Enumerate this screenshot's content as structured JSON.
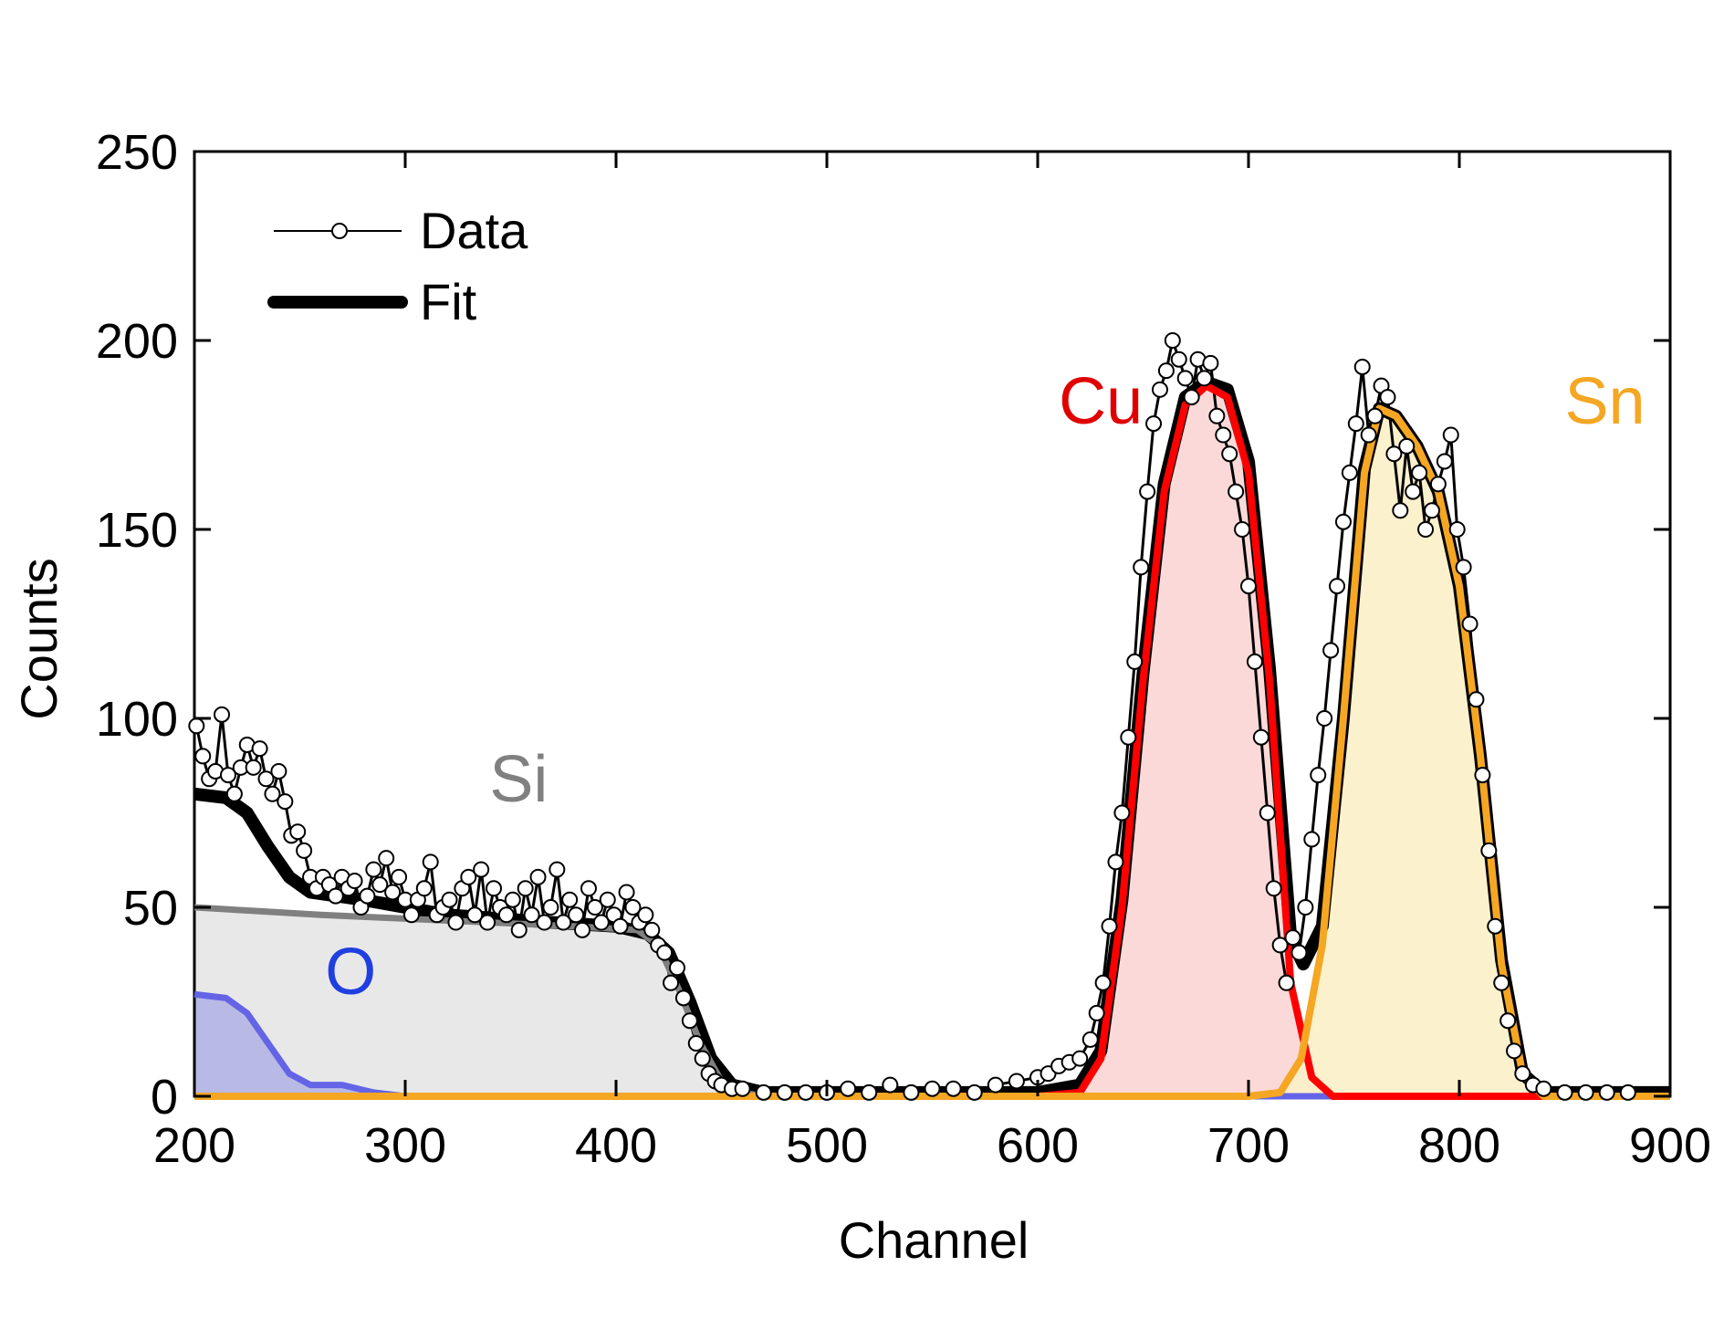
{
  "chart_data": {
    "type": "line",
    "title": "",
    "xlabel": "Channel",
    "ylabel": "Counts",
    "xlim": [
      200,
      900
    ],
    "ylim": [
      0,
      250
    ],
    "xticks": [
      200,
      300,
      400,
      500,
      600,
      700,
      800,
      900
    ],
    "yticks": [
      0,
      50,
      100,
      150,
      200,
      250
    ],
    "legend": {
      "position": "top-left",
      "entries": [
        {
          "label": "Data",
          "style": "line-with-open-circle"
        },
        {
          "label": "Fit",
          "style": "thick-line"
        }
      ]
    },
    "annotations": [
      {
        "text": "Si",
        "x": 340,
        "y": 78,
        "color": "#808080"
      },
      {
        "text": "O",
        "x": 262,
        "y": 27,
        "color": "#1f3fe0"
      },
      {
        "text": "Cu",
        "x": 610,
        "y": 178,
        "color": "#e00000"
      },
      {
        "text": "Sn",
        "x": 850,
        "y": 178,
        "color": "#f5a623"
      }
    ],
    "series": [
      {
        "name": "Si",
        "color": "#808080",
        "fill": "#e6e6e6",
        "points": [
          [
            200,
            50
          ],
          [
            230,
            49
          ],
          [
            260,
            48
          ],
          [
            300,
            47
          ],
          [
            340,
            46
          ],
          [
            380,
            45
          ],
          [
            410,
            44
          ],
          [
            420,
            40
          ],
          [
            430,
            28
          ],
          [
            440,
            14
          ],
          [
            450,
            4
          ],
          [
            460,
            1
          ],
          [
            470,
            0
          ],
          [
            900,
            0
          ]
        ]
      },
      {
        "name": "O",
        "color": "#6464e6",
        "fill": "#b4b4e6",
        "points": [
          [
            200,
            27
          ],
          [
            215,
            26
          ],
          [
            225,
            22
          ],
          [
            235,
            14
          ],
          [
            245,
            6
          ],
          [
            255,
            3
          ],
          [
            270,
            3
          ],
          [
            285,
            1
          ],
          [
            300,
            0
          ],
          [
            900,
            0
          ]
        ]
      },
      {
        "name": "Cu",
        "color": "#ff0000",
        "fill": "#fcd5d5",
        "points": [
          [
            200,
            0
          ],
          [
            600,
            0
          ],
          [
            620,
            1
          ],
          [
            630,
            10
          ],
          [
            640,
            50
          ],
          [
            650,
            110
          ],
          [
            660,
            160
          ],
          [
            670,
            183
          ],
          [
            680,
            188
          ],
          [
            690,
            185
          ],
          [
            700,
            165
          ],
          [
            710,
            110
          ],
          [
            720,
            30
          ],
          [
            730,
            5
          ],
          [
            740,
            0
          ],
          [
            900,
            0
          ]
        ]
      },
      {
        "name": "Sn",
        "color": "#f5a623",
        "fill": "#fcefc8",
        "points": [
          [
            200,
            0
          ],
          [
            700,
            0
          ],
          [
            715,
            1
          ],
          [
            725,
            10
          ],
          [
            735,
            40
          ],
          [
            745,
            100
          ],
          [
            755,
            165
          ],
          [
            762,
            182
          ],
          [
            770,
            180
          ],
          [
            780,
            172
          ],
          [
            790,
            160
          ],
          [
            800,
            135
          ],
          [
            810,
            90
          ],
          [
            820,
            35
          ],
          [
            830,
            6
          ],
          [
            840,
            0
          ],
          [
            900,
            0
          ]
        ]
      },
      {
        "name": "Fit",
        "color": "#000000",
        "points": [
          [
            200,
            80
          ],
          [
            215,
            79
          ],
          [
            225,
            75
          ],
          [
            235,
            66
          ],
          [
            245,
            58
          ],
          [
            255,
            54
          ],
          [
            280,
            52
          ],
          [
            320,
            48
          ],
          [
            370,
            46
          ],
          [
            400,
            45
          ],
          [
            415,
            43
          ],
          [
            425,
            38
          ],
          [
            435,
            25
          ],
          [
            445,
            10
          ],
          [
            455,
            3
          ],
          [
            470,
            1
          ],
          [
            500,
            1
          ],
          [
            560,
            1
          ],
          [
            600,
            1
          ],
          [
            620,
            3
          ],
          [
            630,
            12
          ],
          [
            640,
            52
          ],
          [
            650,
            112
          ],
          [
            660,
            162
          ],
          [
            670,
            185
          ],
          [
            680,
            189
          ],
          [
            690,
            187
          ],
          [
            700,
            168
          ],
          [
            710,
            113
          ],
          [
            720,
            42
          ],
          [
            726,
            35
          ],
          [
            735,
            45
          ],
          [
            745,
            100
          ],
          [
            755,
            166
          ],
          [
            762,
            182
          ],
          [
            770,
            180
          ],
          [
            780,
            172
          ],
          [
            790,
            160
          ],
          [
            800,
            135
          ],
          [
            810,
            90
          ],
          [
            820,
            36
          ],
          [
            830,
            6
          ],
          [
            840,
            1
          ],
          [
            900,
            1
          ]
        ]
      },
      {
        "name": "Data",
        "color": "#000000",
        "marker": "open-circle",
        "points": [
          [
            201,
            98
          ],
          [
            204,
            90
          ],
          [
            207,
            84
          ],
          [
            210,
            86
          ],
          [
            213,
            101
          ],
          [
            216,
            85
          ],
          [
            219,
            80
          ],
          [
            222,
            87
          ],
          [
            225,
            93
          ],
          [
            228,
            87
          ],
          [
            231,
            92
          ],
          [
            234,
            84
          ],
          [
            237,
            80
          ],
          [
            240,
            86
          ],
          [
            243,
            78
          ],
          [
            246,
            69
          ],
          [
            249,
            70
          ],
          [
            252,
            65
          ],
          [
            255,
            58
          ],
          [
            258,
            55
          ],
          [
            261,
            58
          ],
          [
            264,
            56
          ],
          [
            267,
            53
          ],
          [
            270,
            58
          ],
          [
            273,
            55
          ],
          [
            276,
            57
          ],
          [
            279,
            50
          ],
          [
            282,
            53
          ],
          [
            285,
            60
          ],
          [
            288,
            56
          ],
          [
            291,
            63
          ],
          [
            294,
            54
          ],
          [
            297,
            58
          ],
          [
            300,
            52
          ],
          [
            303,
            48
          ],
          [
            306,
            52
          ],
          [
            309,
            55
          ],
          [
            312,
            62
          ],
          [
            315,
            48
          ],
          [
            318,
            50
          ],
          [
            321,
            52
          ],
          [
            324,
            46
          ],
          [
            327,
            55
          ],
          [
            330,
            58
          ],
          [
            333,
            48
          ],
          [
            336,
            60
          ],
          [
            339,
            46
          ],
          [
            342,
            55
          ],
          [
            345,
            50
          ],
          [
            348,
            48
          ],
          [
            351,
            52
          ],
          [
            354,
            44
          ],
          [
            357,
            55
          ],
          [
            360,
            48
          ],
          [
            363,
            58
          ],
          [
            366,
            46
          ],
          [
            369,
            50
          ],
          [
            372,
            60
          ],
          [
            375,
            46
          ],
          [
            378,
            52
          ],
          [
            381,
            48
          ],
          [
            384,
            44
          ],
          [
            387,
            55
          ],
          [
            390,
            50
          ],
          [
            393,
            46
          ],
          [
            396,
            52
          ],
          [
            399,
            48
          ],
          [
            402,
            45
          ],
          [
            405,
            54
          ],
          [
            408,
            50
          ],
          [
            411,
            46
          ],
          [
            414,
            48
          ],
          [
            417,
            44
          ],
          [
            420,
            40
          ],
          [
            423,
            38
          ],
          [
            426,
            30
          ],
          [
            429,
            34
          ],
          [
            432,
            26
          ],
          [
            435,
            20
          ],
          [
            438,
            14
          ],
          [
            441,
            10
          ],
          [
            444,
            6
          ],
          [
            447,
            4
          ],
          [
            450,
            3
          ],
          [
            455,
            2
          ],
          [
            460,
            2
          ],
          [
            470,
            1
          ],
          [
            480,
            1
          ],
          [
            490,
            1
          ],
          [
            500,
            1
          ],
          [
            510,
            2
          ],
          [
            520,
            1
          ],
          [
            530,
            3
          ],
          [
            540,
            1
          ],
          [
            550,
            2
          ],
          [
            560,
            2
          ],
          [
            570,
            1
          ],
          [
            580,
            3
          ],
          [
            590,
            4
          ],
          [
            600,
            5
          ],
          [
            605,
            6
          ],
          [
            610,
            8
          ],
          [
            615,
            9
          ],
          [
            620,
            10
          ],
          [
            625,
            15
          ],
          [
            628,
            22
          ],
          [
            631,
            30
          ],
          [
            634,
            45
          ],
          [
            637,
            62
          ],
          [
            640,
            75
          ],
          [
            643,
            95
          ],
          [
            646,
            115
          ],
          [
            649,
            140
          ],
          [
            652,
            160
          ],
          [
            655,
            178
          ],
          [
            658,
            187
          ],
          [
            661,
            192
          ],
          [
            664,
            200
          ],
          [
            667,
            195
          ],
          [
            670,
            190
          ],
          [
            673,
            185
          ],
          [
            676,
            195
          ],
          [
            679,
            190
          ],
          [
            682,
            194
          ],
          [
            685,
            180
          ],
          [
            688,
            175
          ],
          [
            691,
            170
          ],
          [
            694,
            160
          ],
          [
            697,
            150
          ],
          [
            700,
            135
          ],
          [
            703,
            115
          ],
          [
            706,
            95
          ],
          [
            709,
            75
          ],
          [
            712,
            55
          ],
          [
            715,
            40
          ],
          [
            718,
            30
          ],
          [
            721,
            42
          ],
          [
            724,
            38
          ],
          [
            727,
            50
          ],
          [
            730,
            68
          ],
          [
            733,
            85
          ],
          [
            736,
            100
          ],
          [
            739,
            118
          ],
          [
            742,
            135
          ],
          [
            745,
            152
          ],
          [
            748,
            165
          ],
          [
            751,
            178
          ],
          [
            754,
            193
          ],
          [
            757,
            175
          ],
          [
            760,
            180
          ],
          [
            763,
            188
          ],
          [
            766,
            185
          ],
          [
            769,
            170
          ],
          [
            772,
            155
          ],
          [
            775,
            172
          ],
          [
            778,
            160
          ],
          [
            781,
            165
          ],
          [
            784,
            150
          ],
          [
            787,
            155
          ],
          [
            790,
            162
          ],
          [
            793,
            168
          ],
          [
            796,
            175
          ],
          [
            799,
            150
          ],
          [
            802,
            140
          ],
          [
            805,
            125
          ],
          [
            808,
            105
          ],
          [
            811,
            85
          ],
          [
            814,
            65
          ],
          [
            817,
            45
          ],
          [
            820,
            30
          ],
          [
            823,
            20
          ],
          [
            826,
            12
          ],
          [
            830,
            6
          ],
          [
            835,
            3
          ],
          [
            840,
            2
          ],
          [
            850,
            1
          ],
          [
            860,
            1
          ],
          [
            870,
            1
          ],
          [
            880,
            1
          ]
        ]
      }
    ]
  }
}
